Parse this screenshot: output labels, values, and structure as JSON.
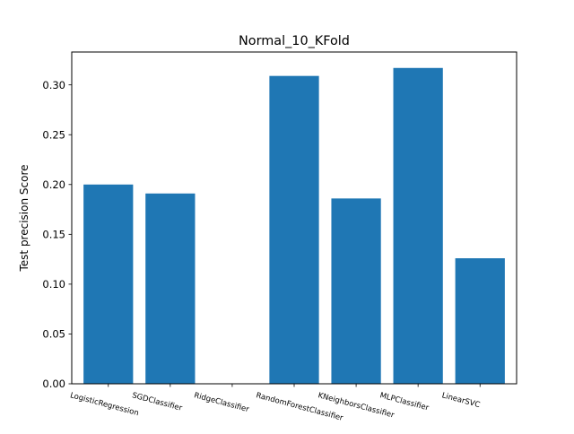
{
  "chart_data": {
    "type": "bar",
    "title": "Normal_10_KFold",
    "xlabel": "",
    "ylabel": "Test precision Score",
    "categories": [
      "LogisticRegression",
      "SGDClassifier",
      "RidgeClassifier",
      "RandomForestClassifier",
      "KNeighborsClassifier",
      "MLPClassifier",
      "LinearSVC"
    ],
    "values": [
      0.2,
      0.191,
      0.0,
      0.309,
      0.186,
      0.317,
      0.126
    ],
    "ylim": [
      0,
      0.333
    ],
    "yticks": [
      0.0,
      0.05,
      0.1,
      0.15,
      0.2,
      0.25,
      0.3
    ],
    "ytick_labels": [
      "0.00",
      "0.05",
      "0.10",
      "0.15",
      "0.20",
      "0.25",
      "0.30"
    ],
    "grid": false,
    "bar_color": "#1f77b4"
  }
}
